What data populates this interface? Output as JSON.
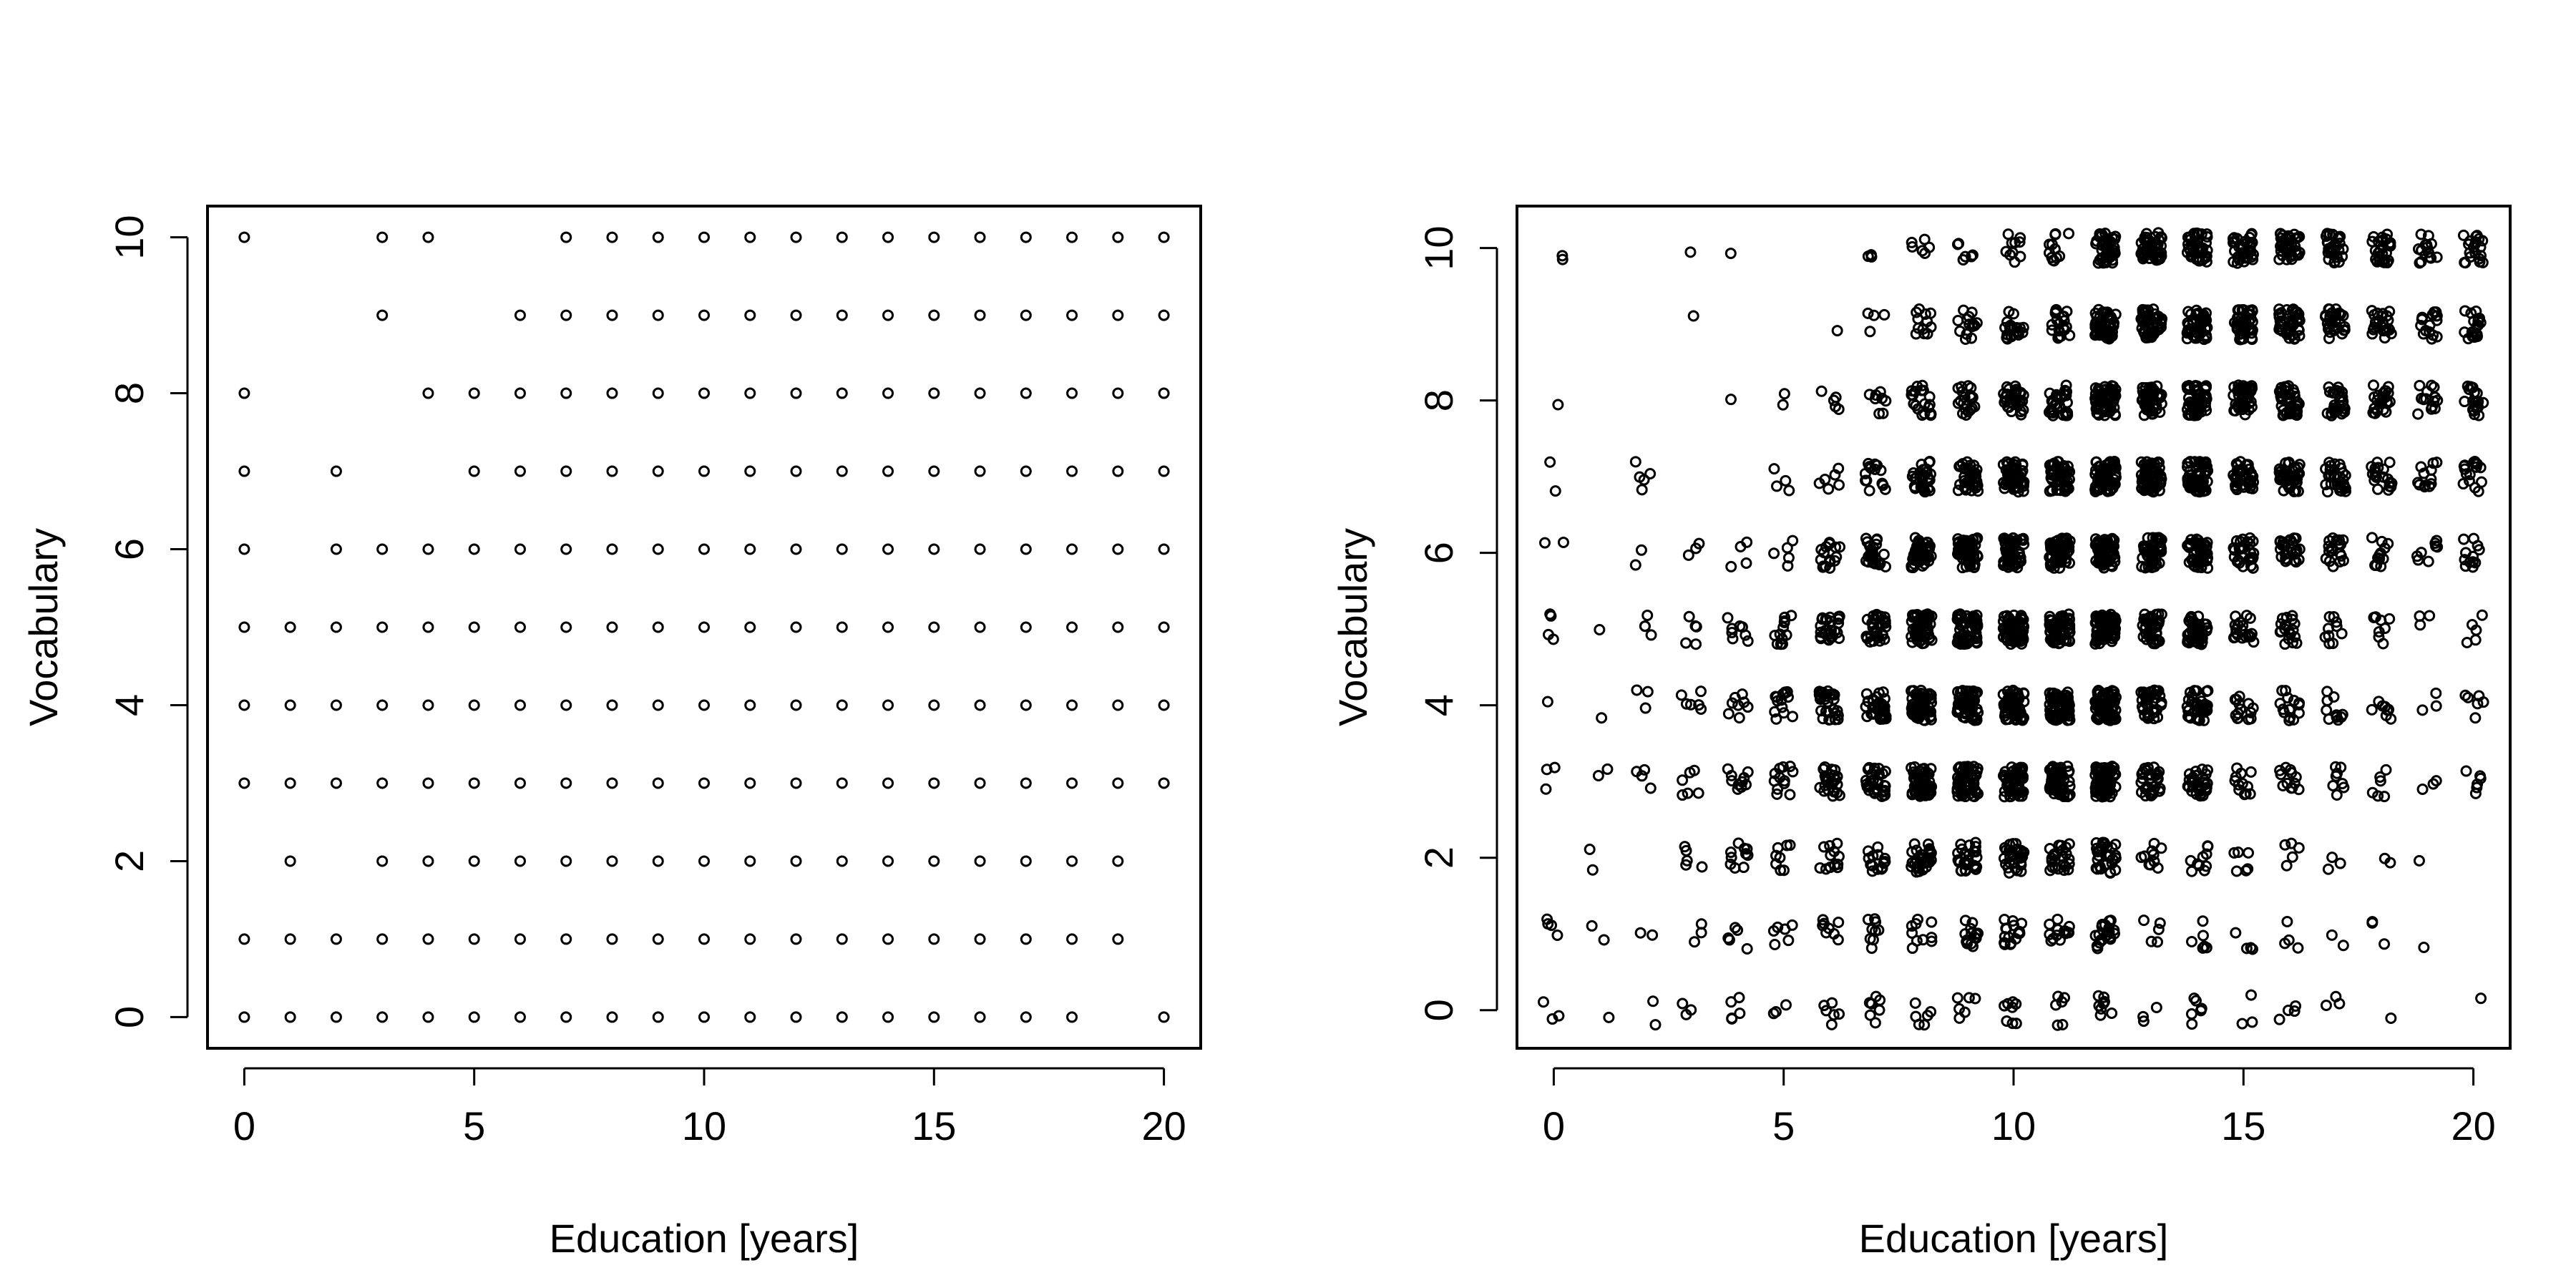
{
  "chart_data": [
    {
      "type": "scatter",
      "title": "",
      "xlabel": "Education [years]",
      "ylabel": "Vocabulary",
      "xlim": [
        -0.8,
        20.8
      ],
      "ylim": [
        -0.4,
        10.4
      ],
      "xticks": [
        0,
        5,
        10,
        15,
        20
      ],
      "yticks": [
        0,
        2,
        4,
        6,
        8,
        10
      ],
      "jitter": false,
      "points_by_vocabulary": {
        "0": [
          0,
          1,
          2,
          3,
          4,
          5,
          6,
          7,
          8,
          9,
          10,
          11,
          12,
          13,
          14,
          15,
          16,
          17,
          18,
          20
        ],
        "1": [
          0,
          1,
          2,
          3,
          4,
          5,
          6,
          7,
          8,
          9,
          10,
          11,
          12,
          13,
          14,
          15,
          16,
          17,
          18,
          19
        ],
        "2": [
          1,
          3,
          4,
          5,
          6,
          7,
          8,
          9,
          10,
          11,
          12,
          13,
          14,
          15,
          16,
          17,
          18,
          19
        ],
        "3": [
          0,
          1,
          2,
          3,
          4,
          5,
          6,
          7,
          8,
          9,
          10,
          11,
          12,
          13,
          14,
          15,
          16,
          17,
          18,
          19,
          20
        ],
        "4": [
          0,
          1,
          2,
          3,
          4,
          5,
          6,
          7,
          8,
          9,
          10,
          11,
          12,
          13,
          14,
          15,
          16,
          17,
          18,
          19,
          20
        ],
        "5": [
          0,
          1,
          2,
          3,
          4,
          5,
          6,
          7,
          8,
          9,
          10,
          11,
          12,
          13,
          14,
          15,
          16,
          17,
          18,
          19,
          20
        ],
        "6": [
          0,
          2,
          3,
          4,
          5,
          6,
          7,
          8,
          9,
          10,
          11,
          12,
          13,
          14,
          15,
          16,
          17,
          18,
          19,
          20
        ],
        "7": [
          0,
          2,
          5,
          6,
          7,
          8,
          9,
          10,
          11,
          12,
          13,
          14,
          15,
          16,
          17,
          18,
          19,
          20
        ],
        "8": [
          0,
          4,
          5,
          6,
          7,
          8,
          9,
          10,
          11,
          12,
          13,
          14,
          15,
          16,
          17,
          18,
          19,
          20
        ],
        "9": [
          3,
          6,
          7,
          8,
          9,
          10,
          11,
          12,
          13,
          14,
          15,
          16,
          17,
          18,
          19,
          20
        ],
        "10": [
          0,
          3,
          4,
          7,
          8,
          9,
          10,
          11,
          12,
          13,
          14,
          15,
          16,
          17,
          18,
          19,
          20
        ]
      }
    },
    {
      "type": "scatter",
      "title": "",
      "xlabel": "Education [years]",
      "ylabel": "Vocabulary",
      "xlim": [
        -0.8,
        20.8
      ],
      "ylim": [
        -0.5,
        10.55
      ],
      "xticks": [
        0,
        5,
        10,
        15,
        20
      ],
      "yticks": [
        0,
        2,
        4,
        6,
        8,
        10
      ],
      "jitter": true,
      "approx_counts_by_vocabulary": {
        "0": {
          "0": 3,
          "1": 1,
          "2": 2,
          "3": 3,
          "4": 5,
          "5": 3,
          "6": 6,
          "7": 7,
          "8": 6,
          "9": 6,
          "10": 8,
          "11": 6,
          "12": 9,
          "13": 3,
          "14": 6,
          "15": 3,
          "16": 4,
          "17": 3,
          "18": 1,
          "19": 0,
          "20": 1
        },
        "1": {
          "0": 4,
          "1": 2,
          "2": 2,
          "3": 3,
          "4": 5,
          "5": 6,
          "6": 8,
          "7": 9,
          "8": 10,
          "9": 14,
          "10": 16,
          "11": 14,
          "12": 20,
          "13": 5,
          "14": 6,
          "15": 4,
          "16": 4,
          "17": 2,
          "18": 3,
          "19": 1,
          "20": 0
        },
        "2": {
          "0": 0,
          "1": 2,
          "2": 0,
          "3": 5,
          "4": 10,
          "5": 8,
          "6": 12,
          "7": 16,
          "8": 30,
          "9": 28,
          "10": 28,
          "11": 24,
          "12": 30,
          "13": 10,
          "14": 10,
          "15": 6,
          "16": 5,
          "17": 3,
          "18": 2,
          "19": 1,
          "20": 0
        },
        "3": {
          "0": 3,
          "1": 2,
          "2": 4,
          "3": 6,
          "4": 10,
          "5": 12,
          "6": 24,
          "7": 30,
          "8": 60,
          "9": 60,
          "10": 60,
          "11": 60,
          "12": 70,
          "13": 30,
          "14": 30,
          "15": 12,
          "16": 12,
          "17": 8,
          "18": 6,
          "19": 3,
          "20": 6
        },
        "4": {
          "0": 1,
          "1": 1,
          "2": 3,
          "3": 6,
          "4": 8,
          "5": 14,
          "6": 28,
          "7": 34,
          "8": 60,
          "9": 60,
          "10": 60,
          "11": 60,
          "12": 70,
          "13": 36,
          "14": 36,
          "15": 14,
          "16": 14,
          "17": 10,
          "18": 8,
          "19": 3,
          "20": 6
        },
        "5": {
          "0": 4,
          "1": 1,
          "2": 4,
          "3": 5,
          "4": 8,
          "5": 12,
          "6": 26,
          "7": 30,
          "8": 60,
          "9": 60,
          "10": 60,
          "11": 60,
          "12": 70,
          "13": 40,
          "14": 40,
          "15": 20,
          "16": 18,
          "17": 10,
          "18": 8,
          "19": 3,
          "20": 5
        },
        "6": {
          "0": 2,
          "1": 0,
          "2": 2,
          "3": 3,
          "4": 4,
          "5": 5,
          "6": 16,
          "7": 26,
          "8": 50,
          "9": 60,
          "10": 60,
          "11": 60,
          "12": 70,
          "13": 50,
          "14": 50,
          "15": 30,
          "16": 26,
          "17": 18,
          "18": 12,
          "19": 8,
          "20": 12
        },
        "7": {
          "0": 2,
          "1": 0,
          "2": 5,
          "3": 0,
          "4": 0,
          "5": 4,
          "6": 6,
          "7": 14,
          "8": 30,
          "9": 40,
          "10": 50,
          "11": 50,
          "12": 70,
          "13": 60,
          "14": 60,
          "15": 40,
          "16": 40,
          "17": 30,
          "18": 20,
          "19": 12,
          "20": 16
        },
        "8": {
          "0": 1,
          "1": 0,
          "2": 0,
          "3": 0,
          "4": 1,
          "5": 2,
          "6": 5,
          "7": 8,
          "8": 20,
          "9": 20,
          "10": 30,
          "11": 30,
          "12": 60,
          "13": 50,
          "14": 50,
          "15": 40,
          "16": 40,
          "17": 30,
          "18": 24,
          "19": 14,
          "20": 20
        },
        "9": {
          "0": 0,
          "1": 0,
          "2": 0,
          "3": 1,
          "4": 0,
          "5": 0,
          "6": 1,
          "7": 4,
          "8": 12,
          "9": 14,
          "10": 20,
          "11": 20,
          "12": 50,
          "13": 50,
          "14": 50,
          "15": 40,
          "16": 40,
          "17": 30,
          "18": 26,
          "19": 16,
          "20": 20
        },
        "10": {
          "0": 2,
          "1": 0,
          "2": 0,
          "3": 1,
          "4": 1,
          "5": 0,
          "6": 0,
          "7": 3,
          "8": 6,
          "9": 6,
          "10": 10,
          "11": 12,
          "12": 40,
          "13": 40,
          "14": 40,
          "15": 36,
          "16": 36,
          "17": 30,
          "18": 26,
          "19": 16,
          "20": 20
        }
      }
    }
  ]
}
